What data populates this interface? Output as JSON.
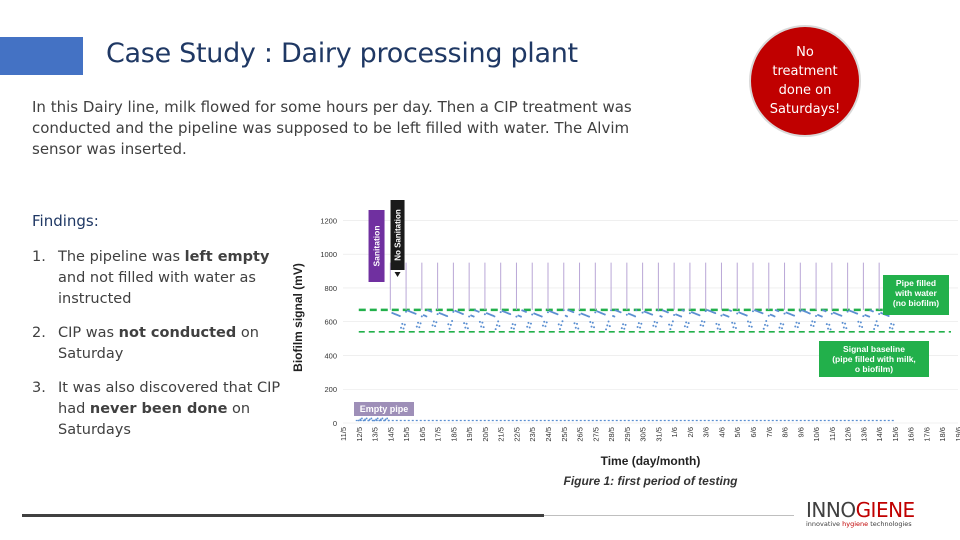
{
  "slide": {
    "title": "Case Study : Dairy processing plant",
    "intro": "In this Dairy line, milk flowed for some hours per day.  Then a CIP treatment was conducted and the pipeline was supposed to be left filled with water.  The Alvim sensor was inserted.",
    "findings_heading": "Findings:",
    "findings": [
      {
        "num": "1.",
        "pre": "The pipeline was ",
        "bold": "left empty",
        "post": " and not filled with water as instructed"
      },
      {
        "num": "2.",
        "pre": "CIP was ",
        "bold": "not conducted",
        "post": " on Saturday"
      },
      {
        "num": "3.",
        "pre": "It was also discovered that CIP had ",
        "bold": "never been done",
        "post": " on Saturdays"
      }
    ],
    "badge": "No treatment done on Saturdays!",
    "colors": {
      "accent": "#4472c4",
      "title": "#1f3864",
      "badge": "#c00000",
      "sanitation": "#7030a0",
      "green": "#22b04b",
      "signal": "#5b8fd1"
    }
  },
  "logo": {
    "main_a": "INNO",
    "main_b": "GIENE",
    "tag_a": "innovative ",
    "tag_b": "hygiene",
    "tag_c": " technologies"
  },
  "chart_data": {
    "type": "scatter",
    "ylabel": "Biofilm signal (mV)",
    "xlabel": "Time (day/month)",
    "caption": "Figure 1: first period of testing",
    "ylim": [
      0,
      1250
    ],
    "yticks": [
      0,
      200,
      400,
      600,
      800,
      1000,
      1200
    ],
    "xticks": [
      "11/5",
      "12/5",
      "13/5",
      "14/5",
      "15/5",
      "16/5",
      "17/5",
      "18/5",
      "19/5",
      "20/5",
      "21/5",
      "22/5",
      "23/5",
      "24/5",
      "25/5",
      "26/5",
      "27/5",
      "28/5",
      "29/5",
      "30/5",
      "31/5",
      "1/6",
      "2/6",
      "3/6",
      "4/6",
      "5/6",
      "6/6",
      "7/6",
      "8/6",
      "9/6",
      "10/6",
      "11/6",
      "12/6",
      "13/6",
      "14/6",
      "15/6",
      "16/6",
      "17/6",
      "18/6",
      "19/6"
    ],
    "annotations": {
      "sanitation": "Sanitation",
      "no_sanitation": "No Sanitation",
      "empty_pipe": "Empty pipe",
      "pipe_filled": "Pipe filled with water (no biofilm)",
      "signal_baseline": "Signal baseline (pipe filled with milk, no biofilm)"
    },
    "baselines": {
      "water": 670,
      "milk": 540
    },
    "empty_pipe_level": 15,
    "spike_peak": 950,
    "cycle_levels": {
      "water_plateau": 650,
      "milk_dip": 580
    },
    "data_start": "12/5",
    "data_end": "14/6"
  }
}
